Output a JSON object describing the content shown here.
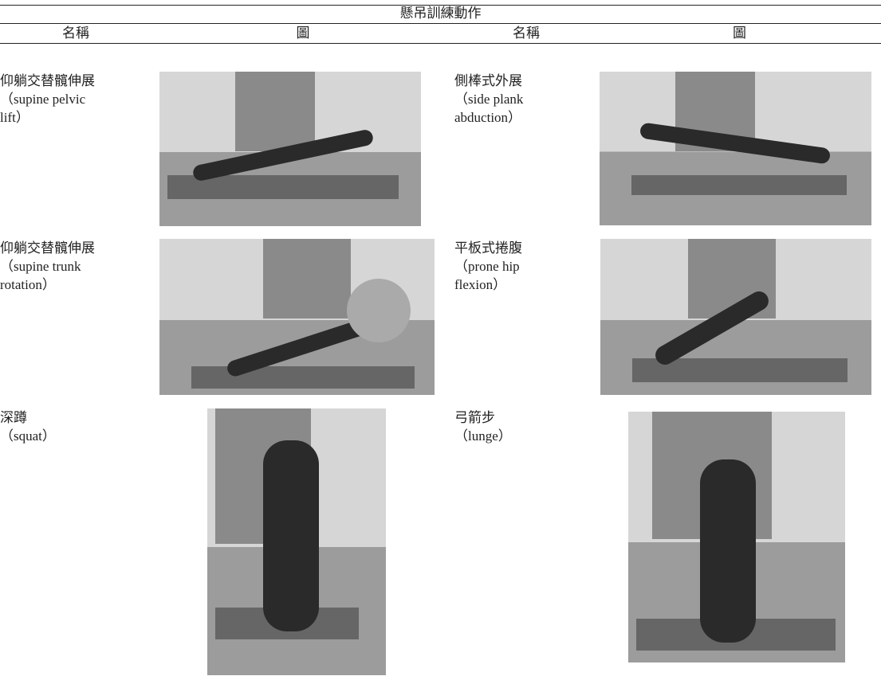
{
  "table": {
    "title": "懸吊訓練動作",
    "headers": [
      "名稱",
      "圖",
      "名稱",
      "圖"
    ],
    "rows": [
      [
        [
          "仰躺交替髖伸展",
          "（supine pelvic",
          "lift）"
        ],
        [
          "側棒式外展",
          "（side plank",
          "abduction）"
        ]
      ],
      [
        [
          "仰躺交替髖伸展",
          "（supine trunk",
          "rotation）"
        ],
        [
          "平板式捲腹",
          "（prone hip",
          "flexion）"
        ]
      ],
      [
        [
          "深蹲",
          "（squat）"
        ],
        [
          "弓箭步",
          "（lunge）"
        ]
      ]
    ]
  }
}
